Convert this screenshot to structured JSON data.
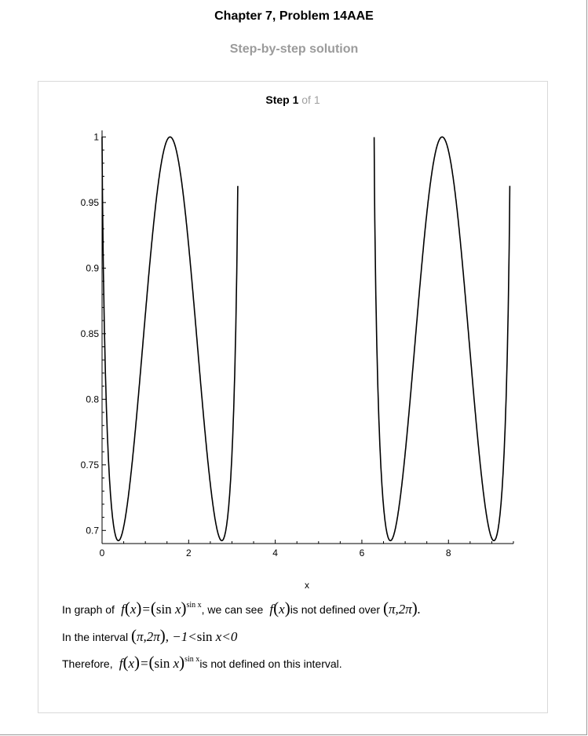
{
  "header": {
    "title": "Chapter 7, Problem 14AAE",
    "subtitle": "Step-by-step solution"
  },
  "step": {
    "label": "Step 1",
    "of_text": "of 1"
  },
  "chart_data": {
    "type": "line",
    "title": "",
    "xlabel": "x",
    "ylabel": "",
    "xlim": [
      0,
      9.5
    ],
    "ylim": [
      0.69,
      1.005
    ],
    "xticks": [
      0,
      2,
      4,
      6,
      8
    ],
    "xtick_labels": [
      "0",
      "2",
      "4",
      "6",
      "8"
    ],
    "yticks": [
      0.7,
      0.75,
      0.8,
      0.85,
      0.9,
      0.95,
      1
    ],
    "ytick_labels": [
      "0.7",
      "0.75",
      "0.8",
      "0.85",
      "0.9",
      "0.95",
      "1"
    ],
    "grid": false,
    "function": "(sin x)^(sin x)",
    "domains": [
      [
        0.0,
        3.1416
      ],
      [
        6.2832,
        9.4248
      ]
    ],
    "series": [
      {
        "x": [
          0.0,
          0.05,
          0.1,
          0.2,
          0.3679,
          0.6,
          0.9,
          1.2,
          1.5708,
          1.9,
          2.2,
          2.5,
          2.7737,
          2.95,
          3.05,
          3.1416
        ],
        "y": [
          1.0,
          0.861,
          0.792,
          0.725,
          0.692,
          0.733,
          0.852,
          0.957,
          1.0,
          0.959,
          0.866,
          0.754,
          0.692,
          0.755,
          0.854,
          0.97
        ]
      },
      {
        "x": [
          6.2832,
          6.35,
          6.45,
          6.6511,
          6.9,
          7.2,
          7.5,
          7.854,
          8.15,
          8.45,
          8.75,
          9.0569,
          9.2,
          9.3,
          9.4248
        ],
        "y": [
          0.99,
          0.84,
          0.76,
          0.692,
          0.727,
          0.843,
          0.952,
          1.0,
          0.961,
          0.867,
          0.754,
          0.692,
          0.725,
          0.79,
          1.0
        ]
      }
    ]
  },
  "text": {
    "line1_a": "In graph of",
    "line1_b": ", we can see",
    "line1_c": "is not defined over",
    "line2_a": "In the interval",
    "line3_a": "Therefore,",
    "line3_b": "is not defined on this interval."
  }
}
